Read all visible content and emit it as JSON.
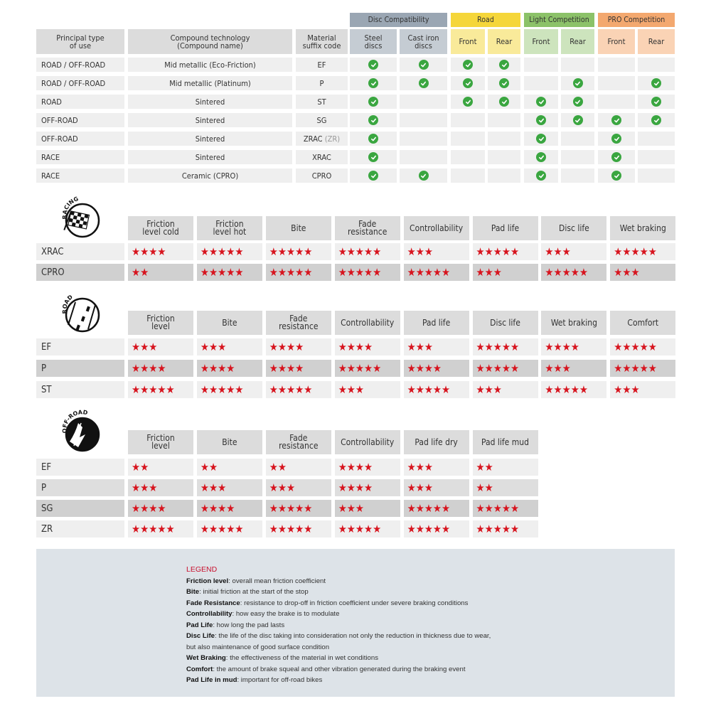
{
  "compat": {
    "groups": [
      {
        "label": "Disc Compatibility",
        "color": "#9aa6b3",
        "sub": "#c5ccd3"
      },
      {
        "label": "Road",
        "color": "#f5d63a",
        "sub": "#f9ea9a"
      },
      {
        "label": "Light Competition",
        "color": "#8cc269",
        "sub": "#cde4bd"
      },
      {
        "label": "PRO Competition",
        "color": "#f3a86f",
        "sub": "#fad3b5"
      }
    ],
    "headers": [
      "Principal type\nof use",
      "Compound technology\n(Compound name)",
      "Material\nsuffix code",
      "Steel\ndiscs",
      "Cast iron\ndiscs",
      "Front",
      "Rear",
      "Front",
      "Rear",
      "Front",
      "Rear"
    ],
    "rows": [
      {
        "use": "ROAD / OFF-ROAD",
        "compound": "Mid metallic (Eco-Friction)",
        "code": "EF",
        "code_extra": "",
        "checks": [
          1,
          1,
          1,
          1,
          0,
          0,
          0,
          0
        ]
      },
      {
        "use": "ROAD / OFF-ROAD",
        "compound": "Mid metallic (Platinum)",
        "code": "P",
        "code_extra": "",
        "checks": [
          1,
          1,
          1,
          1,
          0,
          1,
          0,
          1
        ]
      },
      {
        "use": "ROAD",
        "compound": "Sintered",
        "code": "ST",
        "code_extra": "",
        "checks": [
          1,
          0,
          1,
          1,
          1,
          1,
          0,
          1
        ]
      },
      {
        "use": "OFF-ROAD",
        "compound": "Sintered",
        "code": "SG",
        "code_extra": "",
        "checks": [
          1,
          0,
          0,
          0,
          1,
          1,
          1,
          1
        ]
      },
      {
        "use": "OFF-ROAD",
        "compound": "Sintered",
        "code": "ZRAC",
        "code_extra": " (ZR)",
        "checks": [
          1,
          0,
          0,
          0,
          1,
          0,
          1,
          0
        ]
      },
      {
        "use": "RACE",
        "compound": "Sintered",
        "code": "XRAC",
        "code_extra": "",
        "checks": [
          1,
          0,
          0,
          0,
          1,
          0,
          1,
          0
        ]
      },
      {
        "use": "RACE",
        "compound": "Ceramic (CPRO)",
        "code": "CPRO",
        "code_extra": "",
        "checks": [
          1,
          1,
          0,
          0,
          1,
          0,
          1,
          0
        ]
      }
    ],
    "check_color": "#3aa640"
  },
  "ratings": [
    {
      "badge": "RACING",
      "icon": "checkered-flag-icon",
      "headers": [
        "Friction\nlevel cold",
        "Friction\nlevel hot",
        "Bite",
        "Fade\nresistance",
        "Controllability",
        "Pad life",
        "Disc life",
        "Wet braking"
      ],
      "rows": [
        {
          "name": "XRAC",
          "shade": "light",
          "stars": [
            4,
            5,
            5,
            5,
            3,
            5,
            3,
            5
          ]
        },
        {
          "name": "CPRO",
          "shade": "dark",
          "stars": [
            2,
            5,
            5,
            5,
            5,
            3,
            5,
            3
          ]
        }
      ]
    },
    {
      "badge": "ROAD",
      "icon": "road-icon",
      "headers": [
        "Friction\nlevel",
        "Bite",
        "Fade\nresistance",
        "Controllability",
        "Pad life",
        "Disc life",
        "Wet braking",
        "Comfort"
      ],
      "rows": [
        {
          "name": "EF",
          "shade": "light",
          "stars": [
            3,
            3,
            4,
            4,
            3,
            5,
            4,
            5
          ]
        },
        {
          "name": "P",
          "shade": "dark",
          "stars": [
            4,
            4,
            4,
            5,
            4,
            5,
            3,
            5
          ]
        },
        {
          "name": "ST",
          "shade": "light",
          "stars": [
            5,
            5,
            5,
            3,
            5,
            3,
            5,
            3
          ]
        }
      ]
    },
    {
      "badge": "OFF-ROAD",
      "icon": "mud-tyre-icon",
      "headers": [
        "Friction\nlevel",
        "Bite",
        "Fade\nresistance",
        "Controllability",
        "Pad life dry",
        "Pad life mud"
      ],
      "rows": [
        {
          "name": "EF",
          "shade": "light",
          "stars": [
            2,
            2,
            2,
            4,
            3,
            2
          ]
        },
        {
          "name": "P",
          "shade": "mid",
          "stars": [
            3,
            3,
            3,
            4,
            3,
            2
          ]
        },
        {
          "name": "SG",
          "shade": "dark",
          "stars": [
            4,
            4,
            5,
            3,
            5,
            5
          ]
        },
        {
          "name": "ZR",
          "shade": "light",
          "stars": [
            5,
            5,
            5,
            5,
            5,
            5
          ]
        }
      ]
    }
  ],
  "star_color": "#d7141e",
  "legend": {
    "title": "LEGEND",
    "items": [
      {
        "term": "Friction level",
        "desc": ": overall mean friction coefficient"
      },
      {
        "term": "Bite",
        "desc": ": initial friction at the start of the stop"
      },
      {
        "term": "Fade Resistance",
        "desc": ": resistance to drop-off in friction coefficient under severe braking conditions"
      },
      {
        "term": "Controllability",
        "desc": ": how easy the brake is to modulate"
      },
      {
        "term": "Pad Life",
        "desc": ": how long the pad lasts"
      },
      {
        "term": "Disc Life",
        "desc": ": the life of the disc taking into consideration not only the reduction in thickness due to wear,"
      },
      {
        "term": "",
        "desc": "but also maintenance of good surface condition"
      },
      {
        "term": "Wet Braking",
        "desc": ": the effectiveness of the material in wet conditions"
      },
      {
        "term": "Comfort",
        "desc": ": the amount of brake squeal and other vibration generated during the braking event"
      },
      {
        "term": "Pad Life in mud",
        "desc": ": important for off-road bikes"
      }
    ]
  }
}
